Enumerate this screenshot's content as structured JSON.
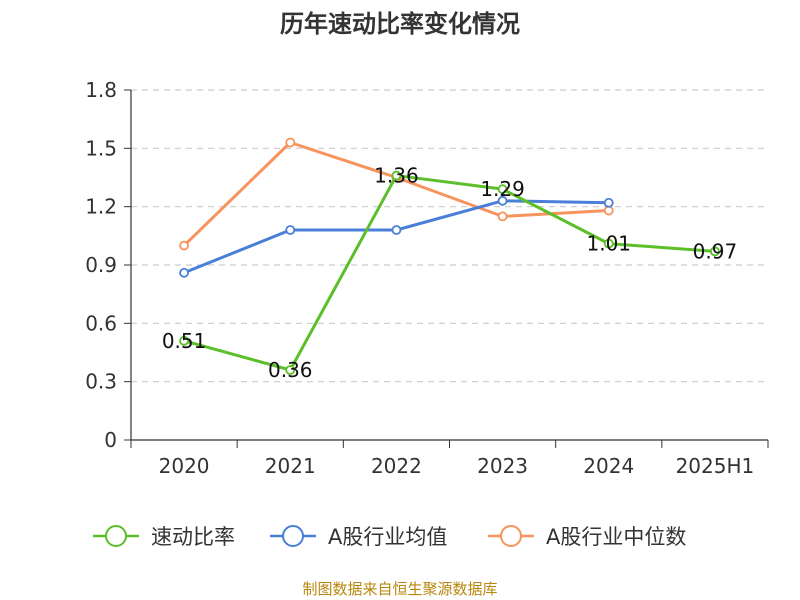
{
  "chart_data": {
    "type": "line",
    "title": "历年速动比率变化情况",
    "categories": [
      "2020",
      "2021",
      "2022",
      "2023",
      "2024",
      "2025H1"
    ],
    "y_ticks": [
      "0",
      "0.3",
      "0.6",
      "0.9",
      "1.2",
      "1.5",
      "1.8"
    ],
    "ylim": [
      0,
      1.8
    ],
    "grid": true,
    "legend_position": "bottom",
    "series": [
      {
        "name": "速动比率",
        "color": "#5cbf2a",
        "values": [
          0.51,
          0.36,
          1.36,
          1.29,
          1.01,
          0.97
        ],
        "labels": [
          "0.51",
          "0.36",
          "1.36",
          "1.29",
          "1.01",
          "0.97"
        ]
      },
      {
        "name": "A股行业均值",
        "color": "#4a7fd9",
        "values": [
          0.86,
          1.08,
          1.08,
          1.23,
          1.22,
          null
        ]
      },
      {
        "name": "A股行业中位数",
        "color": "#f7935c",
        "values": [
          1.0,
          1.53,
          1.35,
          1.15,
          1.18,
          null
        ]
      }
    ]
  },
  "source": "制图数据来自恒生聚源数据库"
}
